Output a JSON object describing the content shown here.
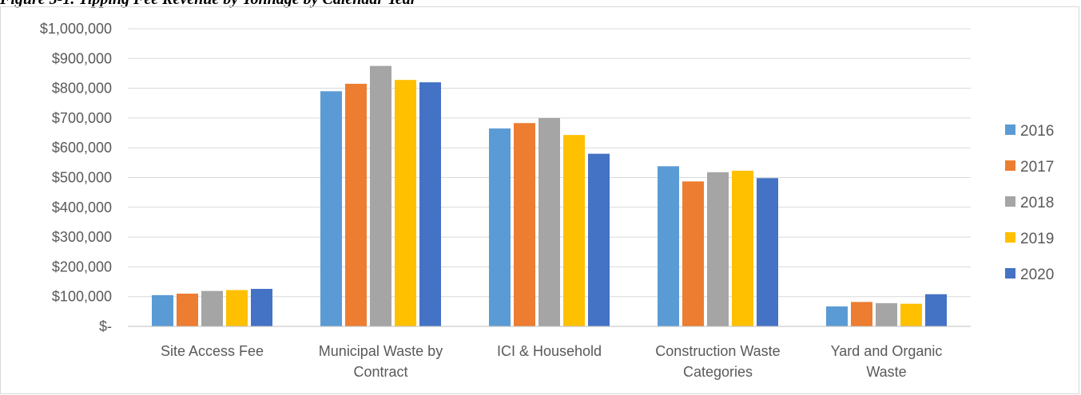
{
  "caption": "Figure 5-1. Tipping Fee Revenue by Tonnage by Calendar Year",
  "chart_data": {
    "type": "bar",
    "title": "",
    "xlabel": "",
    "ylabel": "",
    "ylim": [
      0,
      1000000
    ],
    "y_tick_labels": [
      "$-",
      "$100,000",
      "$200,000",
      "$300,000",
      "$400,000",
      "$500,000",
      "$600,000",
      "$700,000",
      "$800,000",
      "$900,000",
      "$1,000,000"
    ],
    "grid": true,
    "legend_position": "right",
    "categories": [
      [
        "Site Access Fee"
      ],
      [
        "Municipal Waste by",
        "Contract"
      ],
      [
        "ICI & Household"
      ],
      [
        "Construction Waste",
        "Categories"
      ],
      [
        "Yard and Organic",
        "Waste"
      ]
    ],
    "series": [
      {
        "name": "2016",
        "color": "#5b9bd5",
        "values": [
          105000,
          790000,
          665000,
          538000,
          67000
        ]
      },
      {
        "name": "2017",
        "color": "#ed7d31",
        "values": [
          110000,
          815000,
          683000,
          487000,
          82000
        ]
      },
      {
        "name": "2018",
        "color": "#a5a5a5",
        "values": [
          119000,
          875000,
          700000,
          518000,
          78000
        ]
      },
      {
        "name": "2019",
        "color": "#ffc000",
        "values": [
          122000,
          828000,
          643000,
          523000,
          76000
        ]
      },
      {
        "name": "2020",
        "color": "#4472c4",
        "values": [
          126000,
          820000,
          580000,
          498000,
          108000
        ]
      }
    ]
  }
}
